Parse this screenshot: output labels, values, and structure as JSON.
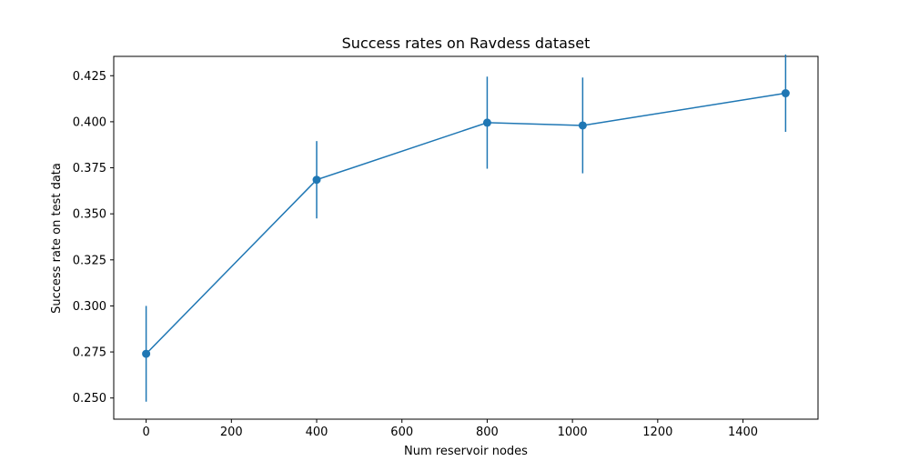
{
  "chart_data": {
    "type": "line",
    "title": "Success rates on Ravdess dataset",
    "xlabel": "Num reservoir nodes",
    "ylabel": "Success rate on test data",
    "xlim": [
      -76,
      1576
    ],
    "ylim": [
      0.2385,
      0.4355
    ],
    "x_ticks": [
      0,
      200,
      400,
      600,
      800,
      1000,
      1200,
      1400
    ],
    "x_tick_labels": [
      "0",
      "200",
      "400",
      "600",
      "800",
      "1000",
      "1200",
      "1400"
    ],
    "y_ticks": [
      0.25,
      0.275,
      0.3,
      0.325,
      0.35,
      0.375,
      0.4,
      0.425
    ],
    "y_tick_labels": [
      "0.250",
      "0.275",
      "0.300",
      "0.325",
      "0.350",
      "0.375",
      "0.400",
      "0.425"
    ],
    "grid": false,
    "legend": "none",
    "color": "#1f77b4",
    "series": [
      {
        "x": [
          0,
          400,
          800,
          1024,
          1500
        ],
        "y": [
          0.274,
          0.3685,
          0.3995,
          0.398,
          0.4155
        ],
        "yerr": [
          0.026,
          0.021,
          0.025,
          0.026,
          0.021
        ]
      }
    ]
  }
}
